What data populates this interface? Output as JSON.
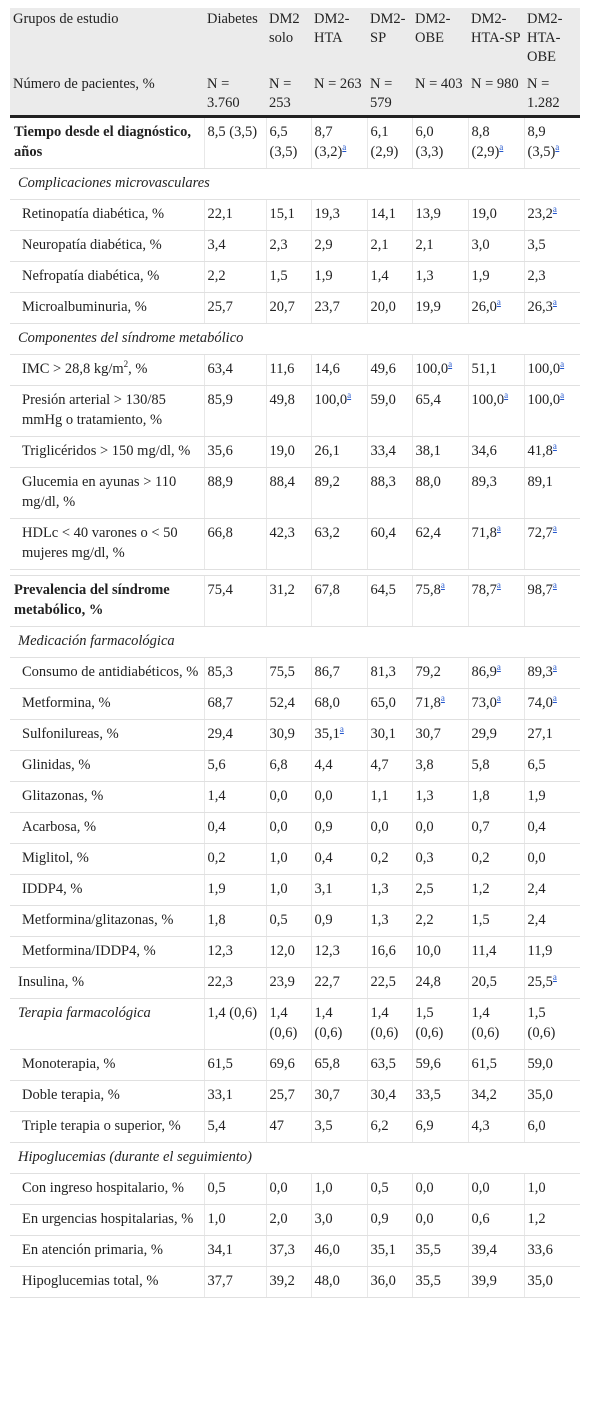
{
  "header": {
    "row1": [
      "Grupos de estudio",
      "Diabetes",
      "DM2 solo",
      "DM2-HTA",
      "DM2-SP",
      "DM2-OBE",
      "DM2-HTA-SP",
      "DM2-HTA-OBE"
    ],
    "row2": [
      "Número de pacientes, %",
      "N = 3.760",
      "N = 253",
      "N = 263",
      "N = 579",
      "N = 403",
      "N = 980",
      "N = 1.282"
    ]
  },
  "footnote_mark": "a",
  "rows": [
    {
      "type": "data",
      "style": "bold",
      "label": "Tiempo desde el diagnóstico, años",
      "values": [
        "8,5 (3,5)",
        "6,5 (3,5)",
        "8,7 (3,2)",
        "6,1 (2,9)",
        "6,0 (3,3)",
        "8,8 (2,9)",
        "8,9 (3,5)"
      ],
      "marks": [
        false,
        false,
        true,
        false,
        false,
        true,
        true
      ]
    },
    {
      "type": "section",
      "label": "Complicaciones microvasculares"
    },
    {
      "type": "data",
      "label": "Retinopatía diabética, %",
      "values": [
        "22,1",
        "15,1",
        "19,3",
        "14,1",
        "13,9",
        "19,0",
        "23,2"
      ],
      "marks": [
        false,
        false,
        false,
        false,
        false,
        false,
        true
      ]
    },
    {
      "type": "data",
      "label": "Neuropatía diabética, %",
      "values": [
        "3,4",
        "2,3",
        "2,9",
        "2,1",
        "2,1",
        "3,0",
        "3,5"
      ],
      "marks": [
        false,
        false,
        false,
        false,
        false,
        false,
        false
      ]
    },
    {
      "type": "data",
      "label": "Nefropatía diabética, %",
      "values": [
        "2,2",
        "1,5",
        "1,9",
        "1,4",
        "1,3",
        "1,9",
        "2,3"
      ],
      "marks": [
        false,
        false,
        false,
        false,
        false,
        false,
        false
      ]
    },
    {
      "type": "data",
      "label": "Microalbuminuria, %",
      "values": [
        "25,7",
        "20,7",
        "23,7",
        "20,0",
        "19,9",
        "26,0",
        "26,3"
      ],
      "marks": [
        false,
        false,
        false,
        false,
        false,
        true,
        true
      ]
    },
    {
      "type": "section",
      "label": "Componentes del síndrome metabólico"
    },
    {
      "type": "data",
      "label": "IMC > 28,8 kg/m",
      "label_sup": "2",
      "label_tail": ", %",
      "values": [
        "63,4",
        "11,6",
        "14,6",
        "49,6",
        "100,0",
        "51,1",
        "100,0"
      ],
      "marks": [
        false,
        false,
        false,
        false,
        true,
        false,
        true
      ]
    },
    {
      "type": "data",
      "label": "Presión arterial > 130/85 mmHg o tratamiento, %",
      "values": [
        "85,9",
        "49,8",
        "100,0",
        "59,0",
        "65,4",
        "100,0",
        "100,0"
      ],
      "marks": [
        false,
        false,
        true,
        false,
        false,
        true,
        true
      ]
    },
    {
      "type": "data",
      "label": "Triglicéridos > 150 mg/dl, %",
      "values": [
        "35,6",
        "19,0",
        "26,1",
        "33,4",
        "38,1",
        "34,6",
        "41,8"
      ],
      "marks": [
        false,
        false,
        false,
        false,
        false,
        false,
        true
      ]
    },
    {
      "type": "data",
      "label": "Glucemia en ayunas > 110 mg/dl, %",
      "values": [
        "88,9",
        "88,4",
        "89,2",
        "88,3",
        "88,0",
        "89,3",
        "89,1"
      ],
      "marks": [
        false,
        false,
        false,
        false,
        false,
        false,
        false
      ]
    },
    {
      "type": "data",
      "label": "HDLc < 40 varones o < 50 mujeres mg/dl, %",
      "values": [
        "66,8",
        "42,3",
        "63,2",
        "60,4",
        "62,4",
        "71,8",
        "72,7"
      ],
      "marks": [
        false,
        false,
        false,
        false,
        false,
        true,
        true
      ]
    },
    {
      "type": "spacer"
    },
    {
      "type": "data",
      "style": "bold",
      "label": "Prevalencia del síndrome metabólico, %",
      "values": [
        "75,4",
        "31,2",
        "67,8",
        "64,5",
        "75,8",
        "78,7",
        "98,7"
      ],
      "marks": [
        false,
        false,
        false,
        false,
        true,
        true,
        true
      ]
    },
    {
      "type": "section",
      "label": "Medicación farmacológica"
    },
    {
      "type": "data",
      "label": "Consumo de antidiabéticos, %",
      "values": [
        "85,3",
        "75,5",
        "86,7",
        "81,3",
        "79,2",
        "86,9",
        "89,3"
      ],
      "marks": [
        false,
        false,
        false,
        false,
        false,
        true,
        true
      ]
    },
    {
      "type": "data",
      "label": "Metformina, %",
      "values": [
        "68,7",
        "52,4",
        "68,0",
        "65,0",
        "71,8",
        "73,0",
        "74,0"
      ],
      "marks": [
        false,
        false,
        false,
        false,
        true,
        true,
        true
      ]
    },
    {
      "type": "data",
      "label": "Sulfonilureas, %",
      "values": [
        "29,4",
        "30,9",
        "35,1",
        "30,1",
        "30,7",
        "29,9",
        "27,1"
      ],
      "marks": [
        false,
        false,
        true,
        false,
        false,
        false,
        false
      ]
    },
    {
      "type": "data",
      "label": "Glinidas, %",
      "values": [
        "5,6",
        "6,8",
        "4,4",
        "4,7",
        "3,8",
        "5,8",
        "6,5"
      ],
      "marks": [
        false,
        false,
        false,
        false,
        false,
        false,
        false
      ]
    },
    {
      "type": "data",
      "label": "Glitazonas, %",
      "values": [
        "1,4",
        "0,0",
        "0,0",
        "1,1",
        "1,3",
        "1,8",
        "1,9"
      ],
      "marks": [
        false,
        false,
        false,
        false,
        false,
        false,
        false
      ]
    },
    {
      "type": "data",
      "label": "Acarbosa, %",
      "values": [
        "0,4",
        "0,0",
        "0,9",
        "0,0",
        "0,0",
        "0,7",
        "0,4"
      ],
      "marks": [
        false,
        false,
        false,
        false,
        false,
        false,
        false
      ]
    },
    {
      "type": "data",
      "label": "Miglitol, %",
      "values": [
        "0,2",
        "1,0",
        "0,4",
        "0,2",
        "0,3",
        "0,2",
        "0,0"
      ],
      "marks": [
        false,
        false,
        false,
        false,
        false,
        false,
        false
      ]
    },
    {
      "type": "data",
      "label": "IDDP4, %",
      "values": [
        "1,9",
        "1,0",
        "3,1",
        "1,3",
        "2,5",
        "1,2",
        "2,4"
      ],
      "marks": [
        false,
        false,
        false,
        false,
        false,
        false,
        false
      ]
    },
    {
      "type": "data",
      "label": "Metformina/glitazonas, %",
      "values": [
        "1,8",
        "0,5",
        "0,9",
        "1,3",
        "2,2",
        "1,5",
        "2,4"
      ],
      "marks": [
        false,
        false,
        false,
        false,
        false,
        false,
        false
      ]
    },
    {
      "type": "data",
      "label": "Metformina/IDDP4, %",
      "values": [
        "12,3",
        "12,0",
        "12,3",
        "16,6",
        "10,0",
        "11,4",
        "11,9"
      ],
      "marks": [
        false,
        false,
        false,
        false,
        false,
        false,
        false
      ]
    },
    {
      "type": "data",
      "style": "flush",
      "label": "Insulina, %",
      "values": [
        "22,3",
        "23,9",
        "22,7",
        "22,5",
        "24,8",
        "20,5",
        "25,5"
      ],
      "marks": [
        false,
        false,
        false,
        false,
        false,
        false,
        true
      ]
    },
    {
      "type": "data",
      "style": "italic",
      "label": "Terapia farmacológica",
      "values": [
        "1,4 (0,6)",
        "1,4 (0,6)",
        "1,4 (0,6)",
        "1,4 (0,6)",
        "1,5 (0,6)",
        "1,4 (0,6)",
        "1,5 (0,6)"
      ],
      "marks": [
        false,
        false,
        false,
        false,
        false,
        false,
        false
      ]
    },
    {
      "type": "data",
      "label": "Monoterapia, %",
      "values": [
        "61,5",
        "69,6",
        "65,8",
        "63,5",
        "59,6",
        "61,5",
        "59,0"
      ],
      "marks": [
        false,
        false,
        false,
        false,
        false,
        false,
        false
      ]
    },
    {
      "type": "data",
      "label": "Doble terapia, %",
      "values": [
        "33,1",
        "25,7",
        "30,7",
        "30,4",
        "33,5",
        "34,2",
        "35,0"
      ],
      "marks": [
        false,
        false,
        false,
        false,
        false,
        false,
        false
      ]
    },
    {
      "type": "data",
      "label": "Triple terapia o superior, %",
      "values": [
        "5,4",
        "47",
        "3,5",
        "6,2",
        "6,9",
        "4,3",
        "6,0"
      ],
      "marks": [
        false,
        false,
        false,
        false,
        false,
        false,
        false
      ]
    },
    {
      "type": "section",
      "label": "Hipoglucemias (durante el seguimiento)"
    },
    {
      "type": "data",
      "label": "Con ingreso hospitalario, %",
      "values": [
        "0,5",
        "0,0",
        "1,0",
        "0,5",
        "0,0",
        "0,0",
        "1,0"
      ],
      "marks": [
        false,
        false,
        false,
        false,
        false,
        false,
        false
      ]
    },
    {
      "type": "data",
      "label": "En urgencias hospitalarias, %",
      "values": [
        "1,0",
        "2,0",
        "3,0",
        "0,9",
        "0,0",
        "0,6",
        "1,2"
      ],
      "marks": [
        false,
        false,
        false,
        false,
        false,
        false,
        false
      ]
    },
    {
      "type": "data",
      "label": "En atención primaria, %",
      "values": [
        "34,1",
        "37,3",
        "46,0",
        "35,1",
        "35,5",
        "39,4",
        "33,6"
      ],
      "marks": [
        false,
        false,
        false,
        false,
        false,
        false,
        false
      ]
    },
    {
      "type": "data",
      "label": "Hipoglucemias total, %",
      "values": [
        "37,7",
        "39,2",
        "48,0",
        "36,0",
        "35,5",
        "39,9",
        "35,0"
      ],
      "marks": [
        false,
        false,
        false,
        false,
        false,
        false,
        false
      ]
    }
  ]
}
